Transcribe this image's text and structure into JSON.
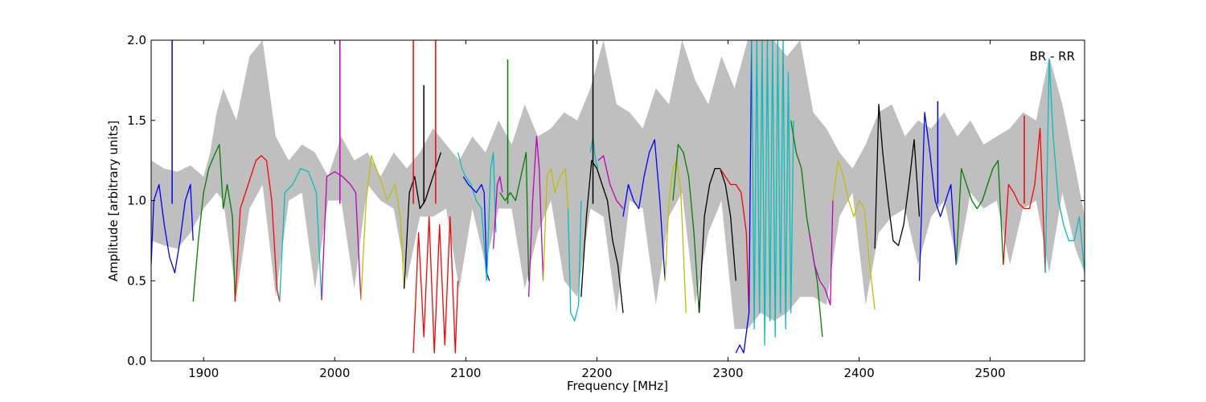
{
  "chart_data": {
    "type": "line",
    "title": "",
    "xlabel": "Frequency [MHz]",
    "ylabel": "Amplitude [arbitrary units]",
    "annotation": "BR - RR",
    "xlim": [
      1860,
      2572
    ],
    "ylim": [
      0.0,
      2.0
    ],
    "x_ticks": [
      1900,
      2000,
      2100,
      2200,
      2300,
      2400,
      2500
    ],
    "y_ticks": [
      0.0,
      0.5,
      1.0,
      1.5,
      2.0
    ],
    "x_tick_labels": [
      "1900",
      "2000",
      "2100",
      "2200",
      "2300",
      "2400",
      "2500"
    ],
    "y_tick_labels": [
      "0.0",
      "0.5",
      "1.0",
      "1.5",
      "2.0"
    ],
    "grid": false,
    "background_band": {
      "color": "#bfbfbf",
      "x": [
        1860,
        1870,
        1880,
        1890,
        1900,
        1905,
        1910,
        1915,
        1925,
        1935,
        1945,
        1955,
        1965,
        1975,
        1985,
        1995,
        2005,
        2015,
        2025,
        2035,
        2045,
        2055,
        2065,
        2075,
        2085,
        2095,
        2105,
        2115,
        2125,
        2135,
        2145,
        2155,
        2165,
        2175,
        2185,
        2195,
        2205,
        2215,
        2225,
        2235,
        2245,
        2255,
        2265,
        2275,
        2285,
        2295,
        2305,
        2315,
        2325,
        2335,
        2345,
        2355,
        2365,
        2375,
        2385,
        2395,
        2405,
        2415,
        2425,
        2435,
        2445,
        2455,
        2465,
        2475,
        2485,
        2495,
        2505,
        2515,
        2525,
        2535,
        2545,
        2555,
        2565,
        2572
      ],
      "upper": [
        1.25,
        1.2,
        1.18,
        1.22,
        1.15,
        1.3,
        1.55,
        1.7,
        1.5,
        1.9,
        2.0,
        1.4,
        1.25,
        1.35,
        1.3,
        1.15,
        1.4,
        1.25,
        1.3,
        1.15,
        1.3,
        1.2,
        1.3,
        1.45,
        1.35,
        1.25,
        1.4,
        1.3,
        1.5,
        1.35,
        1.6,
        1.4,
        1.45,
        1.55,
        1.5,
        1.7,
        2.0,
        1.6,
        1.55,
        1.45,
        1.7,
        1.6,
        2.0,
        1.75,
        1.6,
        1.9,
        1.7,
        2.0,
        2.0,
        2.0,
        1.9,
        2.0,
        1.55,
        1.45,
        1.3,
        1.2,
        1.35,
        1.55,
        1.6,
        1.4,
        1.5,
        1.45,
        1.55,
        1.4,
        1.5,
        1.35,
        1.4,
        1.45,
        1.55,
        1.5,
        1.9,
        1.6,
        1.2,
        0.9
      ],
      "lower": [
        0.75,
        0.72,
        0.7,
        0.8,
        0.95,
        1.0,
        1.05,
        1.0,
        0.4,
        0.95,
        1.1,
        0.4,
        1.0,
        1.05,
        0.45,
        1.0,
        1.0,
        0.45,
        1.1,
        1.0,
        0.95,
        0.5,
        0.9,
        0.9,
        0.95,
        0.45,
        0.95,
        0.6,
        0.95,
        0.95,
        0.45,
        0.8,
        1.0,
        0.5,
        0.4,
        0.95,
        0.9,
        0.3,
        1.0,
        0.95,
        0.35,
        0.9,
        1.05,
        0.35,
        0.8,
        1.0,
        0.2,
        0.2,
        0.3,
        0.25,
        0.3,
        0.4,
        0.4,
        0.35,
        0.9,
        1.05,
        0.35,
        0.8,
        0.9,
        0.95,
        0.6,
        0.9,
        1.0,
        0.6,
        1.05,
        0.95,
        1.0,
        0.6,
        0.95,
        1.0,
        0.55,
        1.05,
        0.7,
        0.55
      ]
    },
    "series": [
      {
        "color": "#0000ff",
        "x": [
          1860,
          1862,
          1866,
          1870,
          1874,
          1878,
          1882,
          1886,
          1890,
          1892
        ],
        "y": [
          0.6,
          1.0,
          1.1,
          0.85,
          0.65,
          0.55,
          0.75,
          1.0,
          1.1,
          0.75
        ]
      },
      {
        "color": "#008000",
        "x": [
          1892,
          1896,
          1900,
          1904,
          1908,
          1912,
          1915,
          1918,
          1922,
          1924
        ],
        "y": [
          0.37,
          0.75,
          1.05,
          1.2,
          1.28,
          1.35,
          0.95,
          1.1,
          0.9,
          0.37
        ]
      },
      {
        "color": "#ff0000",
        "x": [
          1924,
          1928,
          1934,
          1940,
          1944,
          1948,
          1952,
          1956,
          1958
        ],
        "y": [
          0.37,
          0.95,
          1.1,
          1.25,
          1.28,
          1.25,
          1.0,
          0.45,
          0.37
        ]
      },
      {
        "color": "#00bfbf",
        "x": [
          1958,
          1962,
          1968,
          1974,
          1980,
          1986,
          1990
        ],
        "y": [
          0.37,
          1.05,
          1.1,
          1.2,
          1.18,
          1.05,
          0.38
        ]
      },
      {
        "color": "#bf00bf",
        "x": [
          1990,
          1994,
          2000,
          2006,
          2012,
          2016,
          2020
        ],
        "y": [
          0.38,
          1.15,
          1.18,
          1.15,
          1.1,
          1.05,
          0.38
        ]
      },
      {
        "color": "#bfbf00",
        "x": [
          2020,
          2024,
          2028,
          2034,
          2040,
          2046,
          2050,
          2053
        ],
        "y": [
          0.38,
          1.0,
          1.28,
          1.15,
          1.0,
          1.1,
          0.9,
          0.45
        ]
      },
      {
        "color": "#000000",
        "x": [
          2053,
          2057,
          2061,
          2065,
          2069,
          2073,
          2077,
          2081
        ],
        "y": [
          0.45,
          1.05,
          1.15,
          0.95,
          1.0,
          1.1,
          1.2,
          1.3
        ]
      },
      {
        "color": "#ff0000",
        "x": [
          2060,
          2064,
          2068,
          2072,
          2076,
          2080,
          2084,
          2088,
          2092,
          2094
        ],
        "y": [
          0.05,
          0.8,
          0.15,
          0.9,
          0.05,
          0.85,
          0.1,
          0.9,
          0.05,
          0.5
        ]
      },
      {
        "color": "#00bfbf",
        "x": [
          2094,
          2097,
          2100,
          2104,
          2108,
          2112,
          2116
        ],
        "y": [
          1.3,
          1.2,
          1.15,
          1.1,
          1.0,
          0.95,
          0.5
        ]
      },
      {
        "color": "#0000ff",
        "x": [
          2098,
          2102,
          2108,
          2112,
          2114,
          2116,
          2118
        ],
        "y": [
          1.15,
          1.1,
          1.05,
          1.1,
          1.05,
          0.55,
          0.5
        ]
      },
      {
        "color": "#00bfbf",
        "x": [
          2116,
          2119,
          2121,
          2123
        ],
        "y": [
          0.5,
          1.2,
          1.3,
          0.8
        ]
      },
      {
        "color": "#bf00bf",
        "x": [
          2121,
          2124,
          2126,
          2128
        ],
        "y": [
          0.7,
          1.1,
          1.15,
          1.05
        ]
      },
      {
        "color": "#008000",
        "x": [
          2126,
          2130,
          2134,
          2138,
          2142,
          2146,
          2148
        ],
        "y": [
          1.05,
          1.0,
          1.05,
          1.0,
          1.15,
          1.3,
          0.5
        ]
      },
      {
        "color": "#bf00bf",
        "x": [
          2148,
          2151,
          2154,
          2156,
          2159
        ],
        "y": [
          0.4,
          1.0,
          1.4,
          1.2,
          0.5
        ]
      },
      {
        "color": "#bfbf00",
        "x": [
          2159,
          2162,
          2165,
          2168,
          2172,
          2176,
          2178
        ],
        "y": [
          0.5,
          1.15,
          1.2,
          1.05,
          1.15,
          1.2,
          0.95
        ]
      },
      {
        "color": "#00bfbf",
        "x": [
          2178,
          2180,
          2183,
          2186,
          2188
        ],
        "y": [
          0.95,
          0.3,
          0.25,
          0.35,
          1.0
        ]
      },
      {
        "color": "#000000",
        "x": [
          2188,
          2192,
          2196,
          2200,
          2204,
          2208,
          2212,
          2216,
          2220
        ],
        "y": [
          0.4,
          0.9,
          1.25,
          1.2,
          1.1,
          1.0,
          0.75,
          0.6,
          0.3
        ]
      },
      {
        "color": "#00bfbf",
        "x": [
          2195,
          2197,
          2199,
          2201
        ],
        "y": [
          1.3,
          1.4,
          1.25,
          1.2
        ]
      },
      {
        "color": "#bf00bf",
        "x": [
          2201,
          2205,
          2210,
          2215,
          2220
        ],
        "y": [
          1.25,
          1.28,
          1.1,
          1.0,
          0.95
        ]
      },
      {
        "color": "#0000ff",
        "x": [
          2220,
          2224,
          2228,
          2232,
          2236,
          2240,
          2244,
          2248,
          2252
        ],
        "y": [
          0.9,
          1.1,
          1.0,
          0.95,
          1.15,
          1.3,
          1.38,
          1.0,
          0.5
        ]
      },
      {
        "color": "#bfbf00",
        "x": [
          2252,
          2255,
          2258,
          2261,
          2264,
          2268
        ],
        "y": [
          0.5,
          1.0,
          1.2,
          1.25,
          1.05,
          0.3
        ]
      },
      {
        "color": "#008000",
        "x": [
          2258,
          2262,
          2266,
          2270,
          2274,
          2278
        ],
        "y": [
          1.0,
          1.35,
          1.3,
          1.15,
          0.8,
          0.3
        ]
      },
      {
        "color": "#000000",
        "x": [
          2278,
          2282,
          2286,
          2290,
          2294,
          2298,
          2302,
          2306
        ],
        "y": [
          0.3,
          0.9,
          1.1,
          1.2,
          1.2,
          1.1,
          0.9,
          0.5
        ]
      },
      {
        "color": "#ff0000",
        "x": [
          2294,
          2298,
          2302,
          2306,
          2310,
          2314,
          2316
        ],
        "y": [
          1.2,
          1.15,
          1.1,
          1.1,
          1.05,
          0.8,
          0.3
        ]
      },
      {
        "color": "#0000ff",
        "x": [
          2306,
          2309,
          2312,
          2316,
          2318
        ],
        "y": [
          0.05,
          0.1,
          0.05,
          0.3,
          2.0
        ]
      },
      {
        "color": "#00bfbf",
        "x": [
          2318,
          2320,
          2322,
          2324,
          2326,
          2328,
          2330,
          2332,
          2334,
          2336,
          2338,
          2340,
          2342,
          2344,
          2346,
          2348,
          2350
        ],
        "y": [
          2.0,
          0.2,
          2.0,
          0.3,
          2.0,
          0.1,
          2.0,
          0.25,
          2.0,
          0.15,
          2.0,
          0.3,
          2.0,
          0.2,
          1.8,
          0.3,
          1.5
        ]
      },
      {
        "color": "#008000",
        "x": [
          2348,
          2352,
          2356,
          2360,
          2364,
          2368,
          2372
        ],
        "y": [
          1.5,
          1.3,
          1.2,
          0.9,
          0.7,
          0.5,
          0.15
        ]
      },
      {
        "color": "#bf00bf",
        "x": [
          2362,
          2366,
          2370,
          2374,
          2378,
          2380
        ],
        "y": [
          0.8,
          0.6,
          0.5,
          0.45,
          0.35,
          1.0
        ]
      },
      {
        "color": "#bfbf00",
        "x": [
          2380,
          2384,
          2388,
          2392,
          2396,
          2400,
          2404,
          2408,
          2412
        ],
        "y": [
          1.0,
          1.25,
          1.15,
          1.0,
          0.9,
          1.0,
          0.95,
          0.6,
          0.32
        ]
      },
      {
        "color": "#000000",
        "x": [
          2412,
          2415,
          2418,
          2422,
          2426,
          2430,
          2434,
          2438,
          2442,
          2446
        ],
        "y": [
          0.7,
          1.6,
          1.3,
          1.0,
          0.75,
          0.72,
          0.85,
          1.1,
          1.38,
          0.9
        ]
      },
      {
        "color": "#0000ff",
        "x": [
          2446,
          2450,
          2454,
          2458,
          2462,
          2466,
          2470,
          2474
        ],
        "y": [
          0.5,
          1.55,
          1.3,
          1.0,
          0.9,
          1.0,
          1.1,
          0.6
        ]
      },
      {
        "color": "#008000",
        "x": [
          2474,
          2478,
          2482,
          2486,
          2490,
          2494,
          2498,
          2502,
          2506,
          2510
        ],
        "y": [
          0.6,
          1.2,
          1.1,
          1.0,
          0.95,
          1.0,
          1.1,
          1.2,
          1.25,
          0.6
        ]
      },
      {
        "color": "#ff0000",
        "x": [
          2510,
          2514,
          2518,
          2522,
          2526,
          2530,
          2534,
          2538,
          2542
        ],
        "y": [
          0.6,
          1.1,
          1.05,
          0.98,
          0.95,
          0.95,
          1.1,
          1.45,
          0.55
        ]
      },
      {
        "color": "#00bfbf",
        "x": [
          2542,
          2545,
          2548,
          2552,
          2556,
          2560,
          2564,
          2568,
          2572
        ],
        "y": [
          0.55,
          1.88,
          1.4,
          1.0,
          0.85,
          0.75,
          0.75,
          0.9,
          0.55
        ]
      }
    ],
    "spikes": [
      {
        "color": "#0000ff",
        "x": 1876,
        "y": 2.0
      },
      {
        "color": "#bf00bf",
        "x": 2004,
        "y": 2.0
      },
      {
        "color": "#ff0000",
        "x": 2060,
        "y": 2.0
      },
      {
        "color": "#000000",
        "x": 2068,
        "y": 1.72
      },
      {
        "color": "#ff0000",
        "x": 2077,
        "y": 2.0
      },
      {
        "color": "#008000",
        "x": 2132,
        "y": 1.88
      },
      {
        "color": "#000000",
        "x": 2197,
        "y": 2.0
      },
      {
        "color": "#0000ff",
        "x": 2460,
        "y": 1.62
      },
      {
        "color": "#ff0000",
        "x": 2526,
        "y": 1.53
      }
    ]
  }
}
